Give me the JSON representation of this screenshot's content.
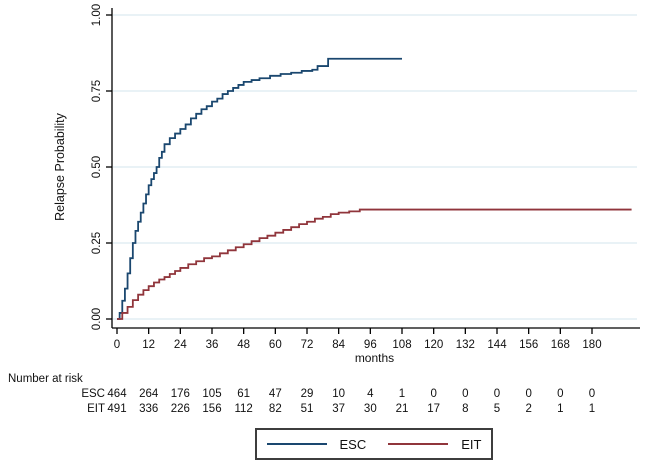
{
  "figure": {
    "background": "#ffffff",
    "text_color": "#111111"
  },
  "chart_data": {
    "type": "line",
    "subtype": "kaplan-meier-step",
    "title": "",
    "xlabel": "months",
    "ylabel": "Relapse Probability",
    "xlim": [
      0,
      195
    ],
    "ylim": [
      0,
      1
    ],
    "xticks": [
      0,
      12,
      24,
      36,
      48,
      60,
      72,
      84,
      96,
      108,
      120,
      132,
      144,
      156,
      168,
      180
    ],
    "yticks": [
      0,
      0.25,
      0.5,
      0.75,
      1
    ],
    "ytick_labels": [
      "0.00",
      "0.25",
      "0.50",
      "0.75",
      "1.00"
    ],
    "grid": true,
    "grid_color": "#dce9f1",
    "axis_color": "#000000",
    "legend_position": "bottom",
    "series": [
      {
        "name": "ESC",
        "color": "#1a476f",
        "points": [
          [
            0,
            0
          ],
          [
            1,
            0.02
          ],
          [
            2,
            0.06
          ],
          [
            3,
            0.1
          ],
          [
            4,
            0.15
          ],
          [
            5,
            0.2
          ],
          [
            6,
            0.25
          ],
          [
            7,
            0.29
          ],
          [
            8,
            0.32
          ],
          [
            9,
            0.35
          ],
          [
            10,
            0.38
          ],
          [
            11,
            0.41
          ],
          [
            12,
            0.44
          ],
          [
            13,
            0.46
          ],
          [
            14,
            0.48
          ],
          [
            15,
            0.5
          ],
          [
            16,
            0.53
          ],
          [
            17,
            0.55
          ],
          [
            18,
            0.575
          ],
          [
            20,
            0.595
          ],
          [
            22,
            0.61
          ],
          [
            24,
            0.625
          ],
          [
            26,
            0.64
          ],
          [
            28,
            0.66
          ],
          [
            30,
            0.675
          ],
          [
            32,
            0.69
          ],
          [
            34,
            0.7
          ],
          [
            36,
            0.715
          ],
          [
            38,
            0.725
          ],
          [
            40,
            0.74
          ],
          [
            42,
            0.75
          ],
          [
            44,
            0.76
          ],
          [
            46,
            0.77
          ],
          [
            48,
            0.78
          ],
          [
            51,
            0.786
          ],
          [
            54,
            0.792
          ],
          [
            58,
            0.8
          ],
          [
            62,
            0.806
          ],
          [
            66,
            0.81
          ],
          [
            70,
            0.816
          ],
          [
            74,
            0.82
          ],
          [
            76,
            0.832
          ],
          [
            80,
            0.856
          ],
          [
            108,
            0.856
          ]
        ]
      },
      {
        "name": "EIT",
        "color": "#90353b",
        "points": [
          [
            0,
            0
          ],
          [
            2,
            0.02
          ],
          [
            4,
            0.04
          ],
          [
            6,
            0.062
          ],
          [
            8,
            0.08
          ],
          [
            10,
            0.095
          ],
          [
            12,
            0.108
          ],
          [
            14,
            0.12
          ],
          [
            16,
            0.13
          ],
          [
            18,
            0.138
          ],
          [
            20,
            0.148
          ],
          [
            22,
            0.158
          ],
          [
            24,
            0.168
          ],
          [
            27,
            0.18
          ],
          [
            30,
            0.19
          ],
          [
            33,
            0.2
          ],
          [
            36,
            0.206
          ],
          [
            39,
            0.216
          ],
          [
            42,
            0.226
          ],
          [
            45,
            0.236
          ],
          [
            48,
            0.246
          ],
          [
            51,
            0.256
          ],
          [
            54,
            0.266
          ],
          [
            57,
            0.274
          ],
          [
            60,
            0.284
          ],
          [
            63,
            0.293
          ],
          [
            66,
            0.302
          ],
          [
            69,
            0.312
          ],
          [
            72,
            0.32
          ],
          [
            75,
            0.33
          ],
          [
            78,
            0.336
          ],
          [
            81,
            0.345
          ],
          [
            84,
            0.35
          ],
          [
            88,
            0.354
          ],
          [
            92,
            0.36
          ],
          [
            195,
            0.36
          ]
        ]
      }
    ]
  },
  "risk_table": {
    "title": "Number at risk",
    "rows": [
      {
        "label": "ESC",
        "values": [
          464,
          264,
          176,
          105,
          61,
          47,
          29,
          10,
          4,
          1,
          0,
          0,
          0,
          0,
          0,
          0
        ]
      },
      {
        "label": "EIT",
        "values": [
          491,
          336,
          226,
          156,
          112,
          82,
          51,
          37,
          30,
          21,
          17,
          8,
          5,
          2,
          1,
          1
        ]
      }
    ]
  },
  "legend": {
    "items": [
      {
        "label": "ESC",
        "color": "#1a476f"
      },
      {
        "label": "EIT",
        "color": "#90353b"
      }
    ]
  }
}
